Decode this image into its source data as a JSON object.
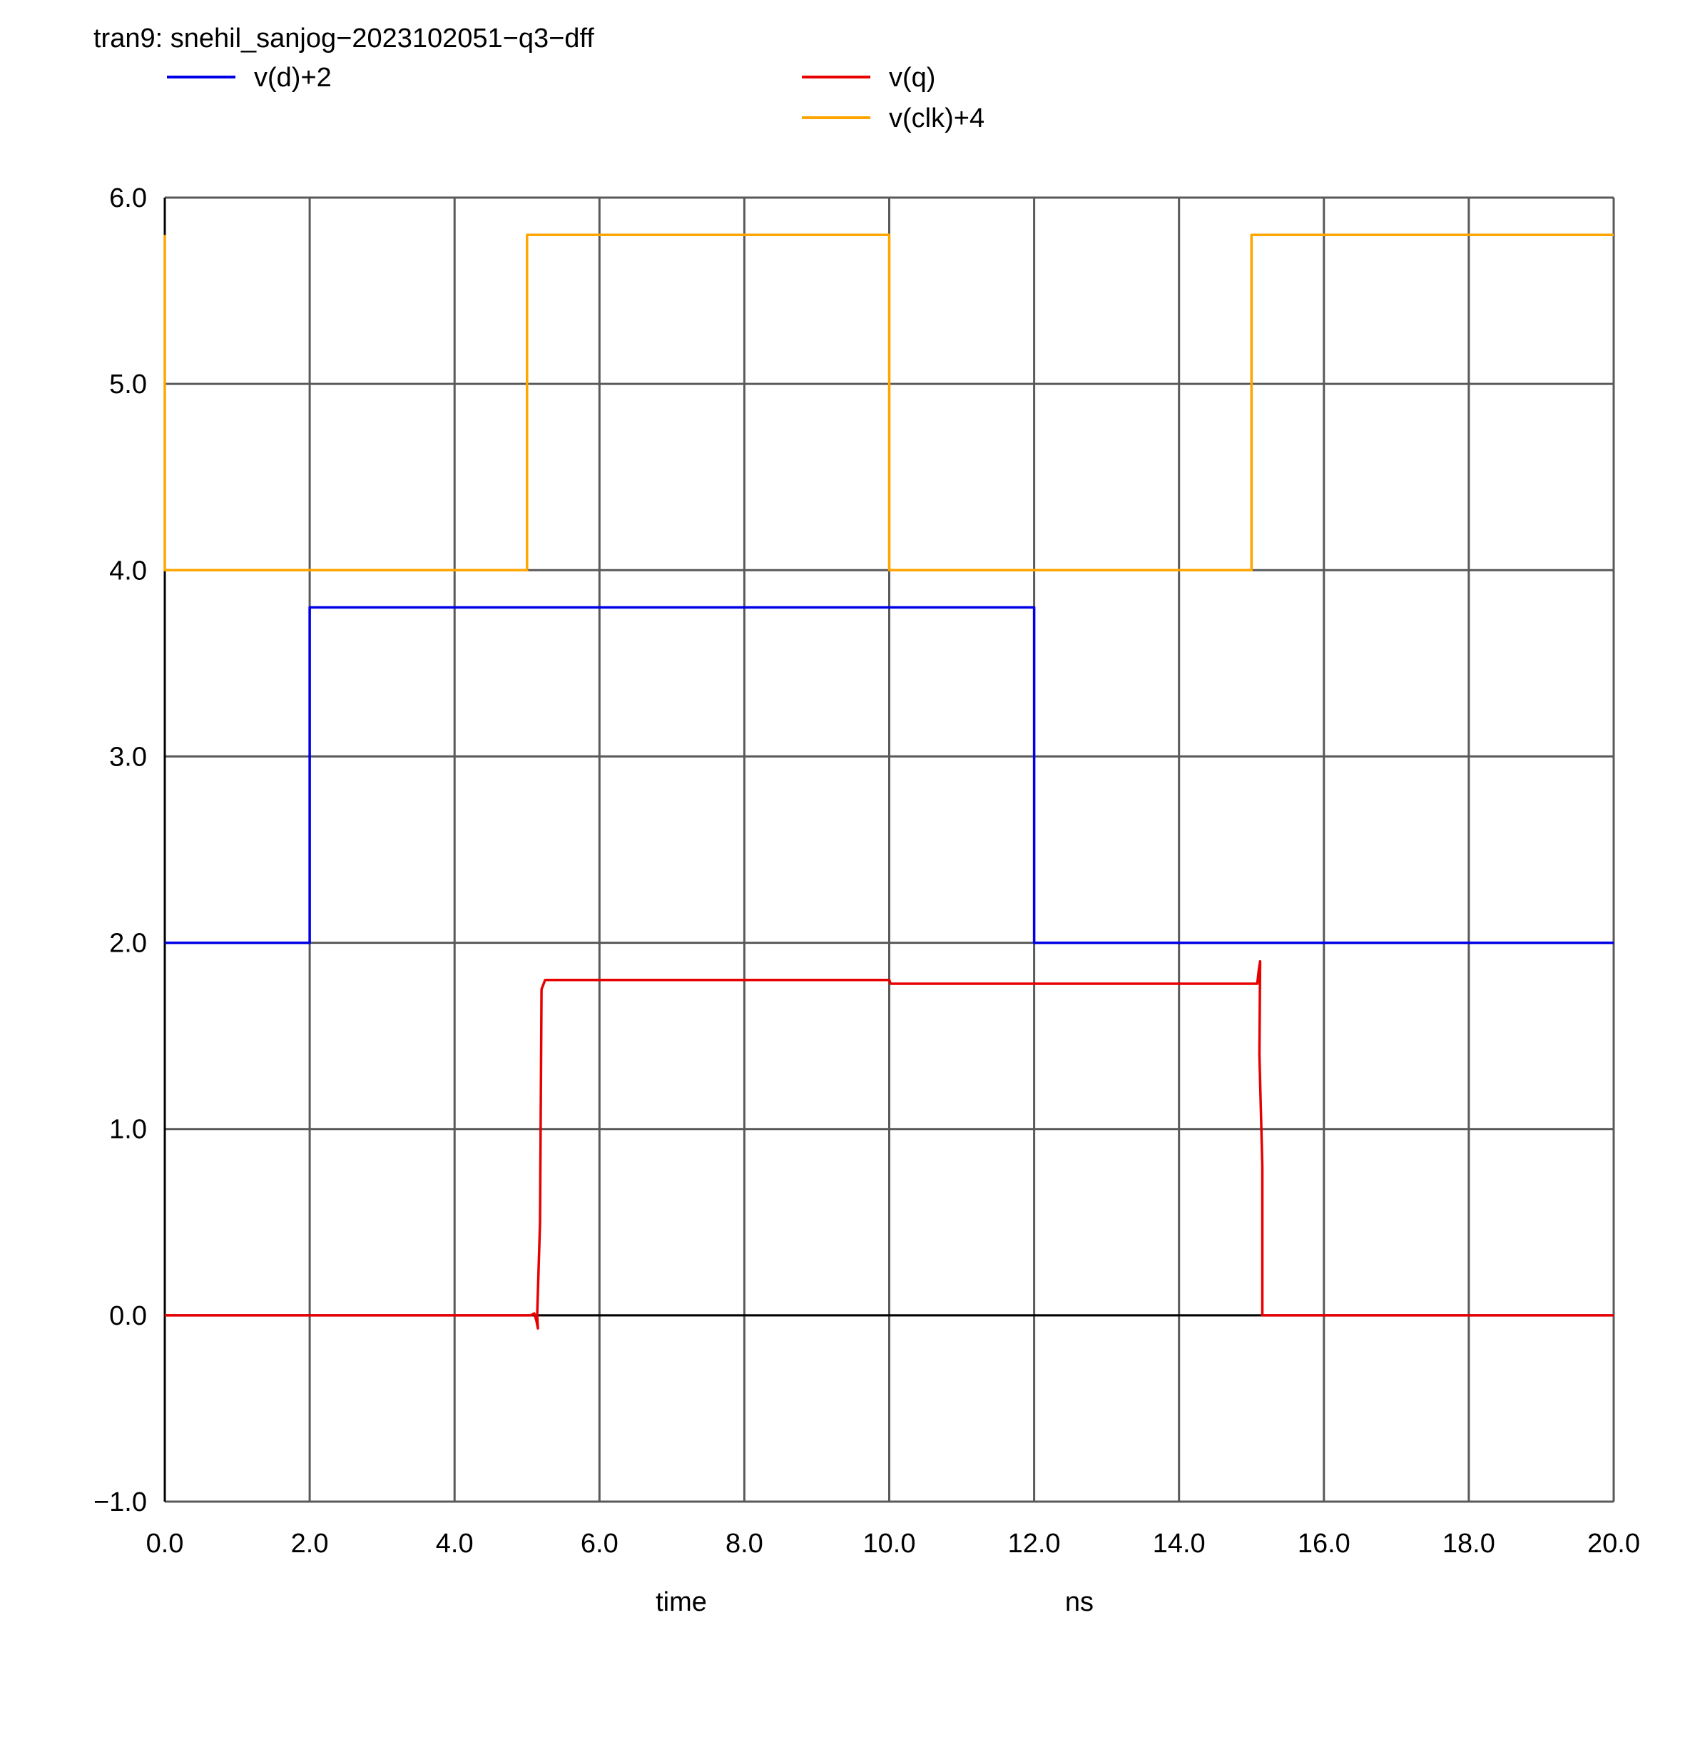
{
  "chart_data": {
    "type": "line",
    "title": "tran9: snehil_sanjog−2023102051−q3−dff",
    "xlabel": "time",
    "xunit": "ns",
    "ylabel": "",
    "xlim": [
      0.0,
      20.0
    ],
    "ylim": [
      -1.0,
      6.0
    ],
    "grid": true,
    "legend_position": "top",
    "x_ticks": [
      0.0,
      2.0,
      4.0,
      6.0,
      8.0,
      10.0,
      12.0,
      14.0,
      16.0,
      18.0,
      20.0
    ],
    "x_tick_labels": [
      "0.0",
      "2.0",
      "4.0",
      "6.0",
      "8.0",
      "10.0",
      "12.0",
      "14.0",
      "16.0",
      "18.0",
      "20.0"
    ],
    "y_ticks": [
      -1.0,
      0.0,
      1.0,
      2.0,
      3.0,
      4.0,
      5.0,
      6.0
    ],
    "y_tick_labels": [
      "−1.0",
      "0.0",
      "1.0",
      "2.0",
      "3.0",
      "4.0",
      "5.0",
      "6.0"
    ],
    "colors": {
      "grid": "#595959",
      "axis": "#000000",
      "zero_line": "#000000"
    },
    "series": [
      {
        "name": "v(d)+2",
        "color": "#0000e6",
        "points": [
          [
            0.0,
            2.0
          ],
          [
            2.0,
            2.0
          ],
          [
            2.0,
            3.8
          ],
          [
            12.0,
            3.8
          ],
          [
            12.0,
            2.0
          ],
          [
            20.0,
            2.0
          ]
        ]
      },
      {
        "name": "v(q)",
        "color": "#e60000",
        "points": [
          [
            0.0,
            0.0
          ],
          [
            5.05,
            0.0
          ],
          [
            5.1,
            0.01
          ],
          [
            5.13,
            -0.03
          ],
          [
            5.15,
            -0.07
          ],
          [
            5.14,
            0.0
          ],
          [
            5.18,
            0.5
          ],
          [
            5.2,
            1.75
          ],
          [
            5.25,
            1.8
          ],
          [
            10.0,
            1.8
          ],
          [
            10.02,
            1.78
          ],
          [
            15.08,
            1.78
          ],
          [
            15.1,
            1.85
          ],
          [
            15.12,
            1.9
          ],
          [
            15.11,
            1.4
          ],
          [
            15.15,
            0.8
          ],
          [
            15.15,
            0.0
          ],
          [
            20.0,
            0.0
          ]
        ]
      },
      {
        "name": "v(clk)+4",
        "color": "#ffa500",
        "points": [
          [
            0.0,
            5.8
          ],
          [
            0.0,
            4.0
          ],
          [
            5.0,
            4.0
          ],
          [
            5.0,
            5.8
          ],
          [
            10.0,
            5.8
          ],
          [
            10.0,
            4.0
          ],
          [
            15.0,
            4.0
          ],
          [
            15.0,
            5.8
          ],
          [
            20.0,
            5.8
          ]
        ]
      }
    ]
  }
}
